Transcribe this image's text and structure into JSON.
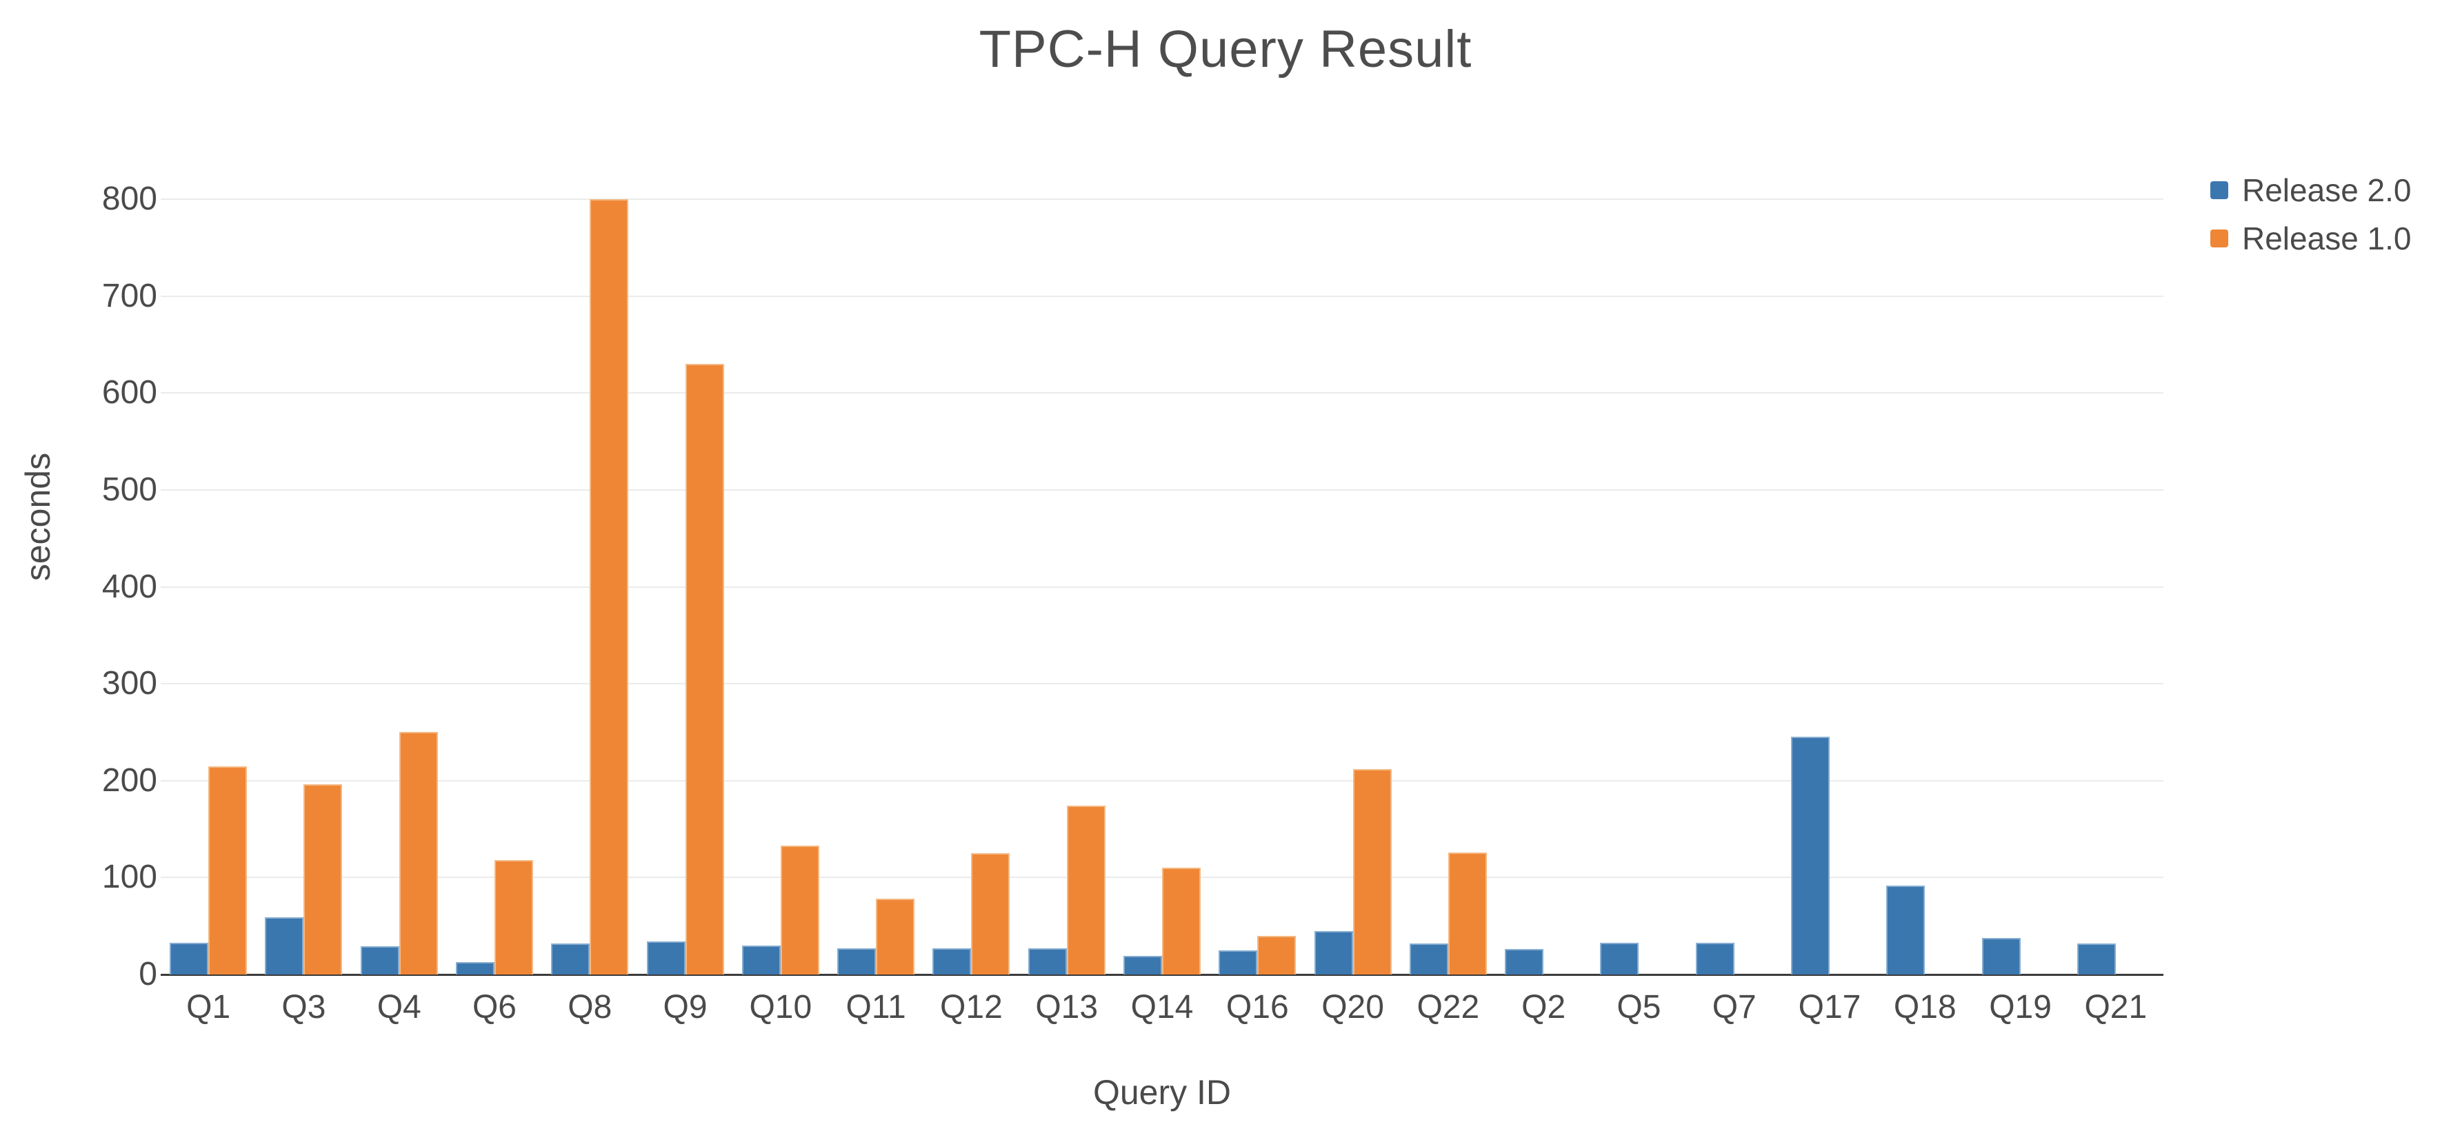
{
  "chart_data": {
    "type": "bar",
    "title": "TPC-H Query Result",
    "xlabel": "Query ID",
    "ylabel": "seconds",
    "categories": [
      "Q1",
      "Q3",
      "Q4",
      "Q6",
      "Q8",
      "Q9",
      "Q10",
      "Q11",
      "Q12",
      "Q13",
      "Q14",
      "Q16",
      "Q20",
      "Q22",
      "Q2",
      "Q5",
      "Q7",
      "Q17",
      "Q18",
      "Q19",
      "Q21"
    ],
    "series": [
      {
        "name": "Release 2.0",
        "color": "#3b77af",
        "values": [
          33,
          59,
          29,
          13,
          32,
          34,
          30,
          27,
          27,
          27,
          19,
          25,
          45,
          32,
          26,
          33,
          33,
          245,
          92,
          38,
          32
        ]
      },
      {
        "name": "Release 1.0",
        "color": "#ef8636",
        "values": [
          215,
          196,
          250,
          118,
          800,
          630,
          133,
          78,
          125,
          174,
          110,
          40,
          212,
          126,
          null,
          null,
          null,
          null,
          null,
          null,
          null
        ]
      }
    ],
    "ylim": [
      0,
      800
    ],
    "yticks": [
      0,
      100,
      200,
      300,
      400,
      500,
      600,
      700,
      800
    ],
    "grid": true,
    "legend_position": "top-right",
    "colors": {
      "bar_blue": "#3b77af",
      "bar_orange": "#ef8636",
      "gridline": "#ebebeb",
      "axis_line": "#3a3a3a",
      "text": "#4a4a4a"
    }
  }
}
